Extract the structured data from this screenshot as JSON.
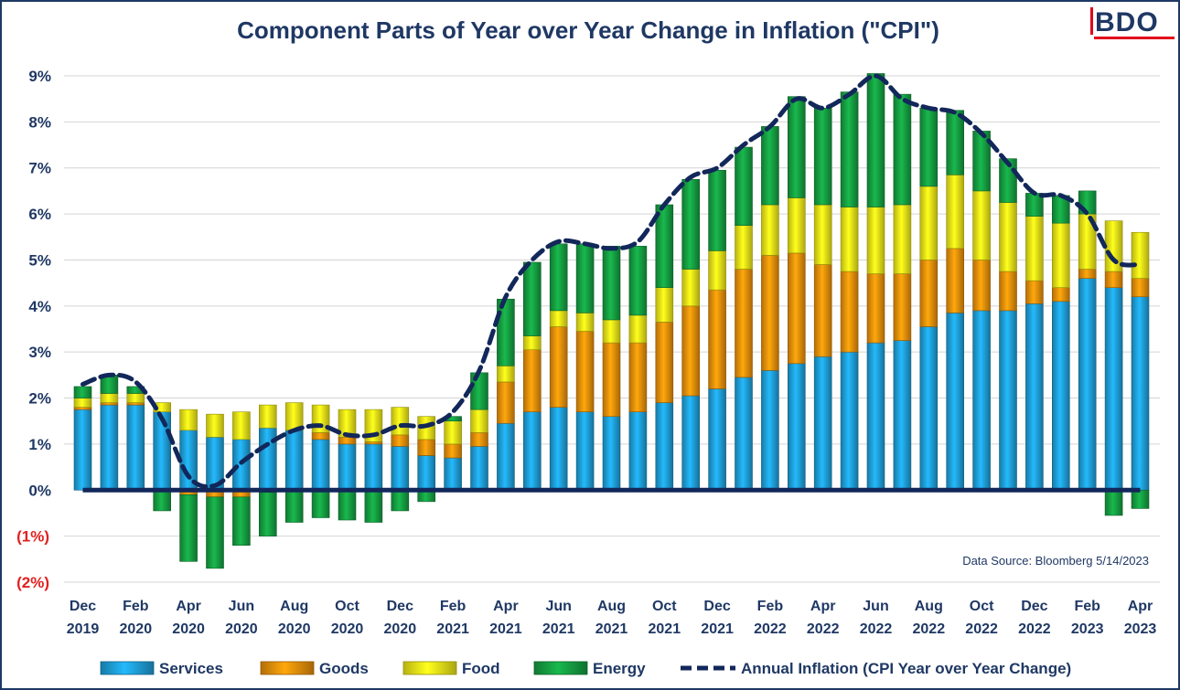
{
  "chart_data": {
    "type": "bar",
    "stacked": true,
    "title": "Component Parts of Year over Year Change in Inflation (\"CPI\")",
    "brand": "BDO",
    "source": "Data Source: Bloomberg 5/14/2023",
    "ylim": [
      -2,
      9
    ],
    "y_ticks": [
      {
        "value": 9,
        "label": "9%"
      },
      {
        "value": 8,
        "label": "8%"
      },
      {
        "value": 7,
        "label": "7%"
      },
      {
        "value": 6,
        "label": "6%"
      },
      {
        "value": 5,
        "label": "5%"
      },
      {
        "value": 4,
        "label": "4%"
      },
      {
        "value": 3,
        "label": "3%"
      },
      {
        "value": 2,
        "label": "2%"
      },
      {
        "value": 1,
        "label": "1%"
      },
      {
        "value": 0,
        "label": "0%"
      },
      {
        "value": -1,
        "label": "(1%)"
      },
      {
        "value": -2,
        "label": "(2%)"
      }
    ],
    "x_ticks": [
      {
        "index": 0,
        "line1": "Dec",
        "line2": "2019"
      },
      {
        "index": 2,
        "line1": "Feb",
        "line2": "2020"
      },
      {
        "index": 4,
        "line1": "Apr",
        "line2": "2020"
      },
      {
        "index": 6,
        "line1": "Jun",
        "line2": "2020"
      },
      {
        "index": 8,
        "line1": "Aug",
        "line2": "2020"
      },
      {
        "index": 10,
        "line1": "Oct",
        "line2": "2020"
      },
      {
        "index": 12,
        "line1": "Dec",
        "line2": "2020"
      },
      {
        "index": 14,
        "line1": "Feb",
        "line2": "2021"
      },
      {
        "index": 16,
        "line1": "Apr",
        "line2": "2021"
      },
      {
        "index": 18,
        "line1": "Jun",
        "line2": "2021"
      },
      {
        "index": 20,
        "line1": "Aug",
        "line2": "2021"
      },
      {
        "index": 22,
        "line1": "Oct",
        "line2": "2021"
      },
      {
        "index": 24,
        "line1": "Dec",
        "line2": "2021"
      },
      {
        "index": 26,
        "line1": "Feb",
        "line2": "2022"
      },
      {
        "index": 28,
        "line1": "Apr",
        "line2": "2022"
      },
      {
        "index": 30,
        "line1": "Jun",
        "line2": "2022"
      },
      {
        "index": 32,
        "line1": "Aug",
        "line2": "2022"
      },
      {
        "index": 34,
        "line1": "Oct",
        "line2": "2022"
      },
      {
        "index": 36,
        "line1": "Dec",
        "line2": "2022"
      },
      {
        "index": 38,
        "line1": "Feb",
        "line2": "2023"
      },
      {
        "index": 40,
        "line1": "Apr",
        "line2": "2023"
      }
    ],
    "categories": [
      "Dec 2019",
      "Jan 2020",
      "Feb 2020",
      "Mar 2020",
      "Apr 2020",
      "May 2020",
      "Jun 2020",
      "Jul 2020",
      "Aug 2020",
      "Sep 2020",
      "Oct 2020",
      "Nov 2020",
      "Dec 2020",
      "Jan 2021",
      "Feb 2021",
      "Mar 2021",
      "Apr 2021",
      "May 2021",
      "Jun 2021",
      "Jul 2021",
      "Aug 2021",
      "Sep 2021",
      "Oct 2021",
      "Nov 2021",
      "Dec 2021",
      "Jan 2022",
      "Feb 2022",
      "Mar 2022",
      "Apr 2022",
      "May 2022",
      "Jun 2022",
      "Jul 2022",
      "Aug 2022",
      "Sep 2022",
      "Oct 2022",
      "Nov 2022",
      "Dec 2022",
      "Jan 2023",
      "Feb 2023",
      "Mar 2023",
      "Apr 2023"
    ],
    "series": [
      {
        "name": "Services",
        "color": "#1fa2dc",
        "values": [
          1.75,
          1.85,
          1.85,
          1.7,
          1.3,
          1.15,
          1.1,
          1.35,
          1.3,
          1.1,
          1.0,
          1.0,
          0.95,
          0.75,
          0.7,
          0.95,
          1.45,
          1.7,
          1.8,
          1.7,
          1.6,
          1.7,
          1.9,
          2.05,
          2.2,
          2.45,
          2.6,
          2.75,
          2.9,
          3.0,
          3.2,
          3.25,
          3.55,
          3.85,
          3.9,
          3.9,
          4.05,
          4.1,
          4.6,
          4.4,
          4.2
        ]
      },
      {
        "name": "Goods",
        "color": "#f0920a",
        "values": [
          0.05,
          0.05,
          0.05,
          0.0,
          -0.1,
          -0.15,
          -0.15,
          -0.05,
          0.0,
          0.15,
          0.15,
          0.05,
          0.25,
          0.35,
          0.3,
          0.3,
          0.9,
          1.35,
          1.75,
          1.75,
          1.6,
          1.5,
          1.75,
          1.95,
          2.15,
          2.35,
          2.5,
          2.4,
          2.0,
          1.75,
          1.5,
          1.45,
          1.45,
          1.4,
          1.1,
          0.85,
          0.5,
          0.3,
          0.2,
          0.35,
          0.4
        ]
      },
      {
        "name": "Food",
        "color": "#f4ed18",
        "values": [
          0.2,
          0.2,
          0.2,
          0.2,
          0.45,
          0.5,
          0.6,
          0.5,
          0.6,
          0.6,
          0.6,
          0.7,
          0.6,
          0.5,
          0.5,
          0.5,
          0.35,
          0.3,
          0.35,
          0.4,
          0.5,
          0.6,
          0.75,
          0.8,
          0.85,
          0.95,
          1.1,
          1.2,
          1.3,
          1.4,
          1.45,
          1.5,
          1.6,
          1.6,
          1.5,
          1.5,
          1.4,
          1.4,
          1.2,
          1.1,
          1.0
        ]
      },
      {
        "name": "Energy",
        "color": "#16a143",
        "values": [
          0.25,
          0.4,
          0.15,
          -0.45,
          -1.45,
          -1.55,
          -1.05,
          -0.95,
          -0.7,
          -0.6,
          -0.65,
          -0.7,
          -0.45,
          -0.25,
          0.1,
          0.8,
          1.45,
          1.6,
          1.45,
          1.5,
          1.6,
          1.5,
          1.8,
          1.95,
          1.75,
          1.7,
          1.7,
          2.2,
          2.1,
          2.5,
          2.9,
          2.4,
          1.7,
          1.4,
          1.3,
          0.95,
          0.5,
          0.6,
          0.5,
          -0.55,
          -0.4
        ]
      },
      {
        "name": "Annual Inflation (CPI Year over Year Change)",
        "color": "#12275a",
        "type": "line",
        "style": "dashed",
        "values": [
          2.3,
          2.5,
          2.35,
          1.55,
          0.3,
          0.1,
          0.6,
          1.0,
          1.3,
          1.4,
          1.2,
          1.2,
          1.4,
          1.4,
          1.7,
          2.6,
          4.2,
          5.0,
          5.4,
          5.35,
          5.25,
          5.4,
          6.2,
          6.8,
          7.0,
          7.5,
          7.9,
          8.5,
          8.3,
          8.6,
          9.0,
          8.5,
          8.3,
          8.2,
          7.75,
          7.1,
          6.45,
          6.4,
          6.0,
          5.0,
          4.9
        ]
      }
    ],
    "legend_position": "bottom",
    "grid": true
  }
}
